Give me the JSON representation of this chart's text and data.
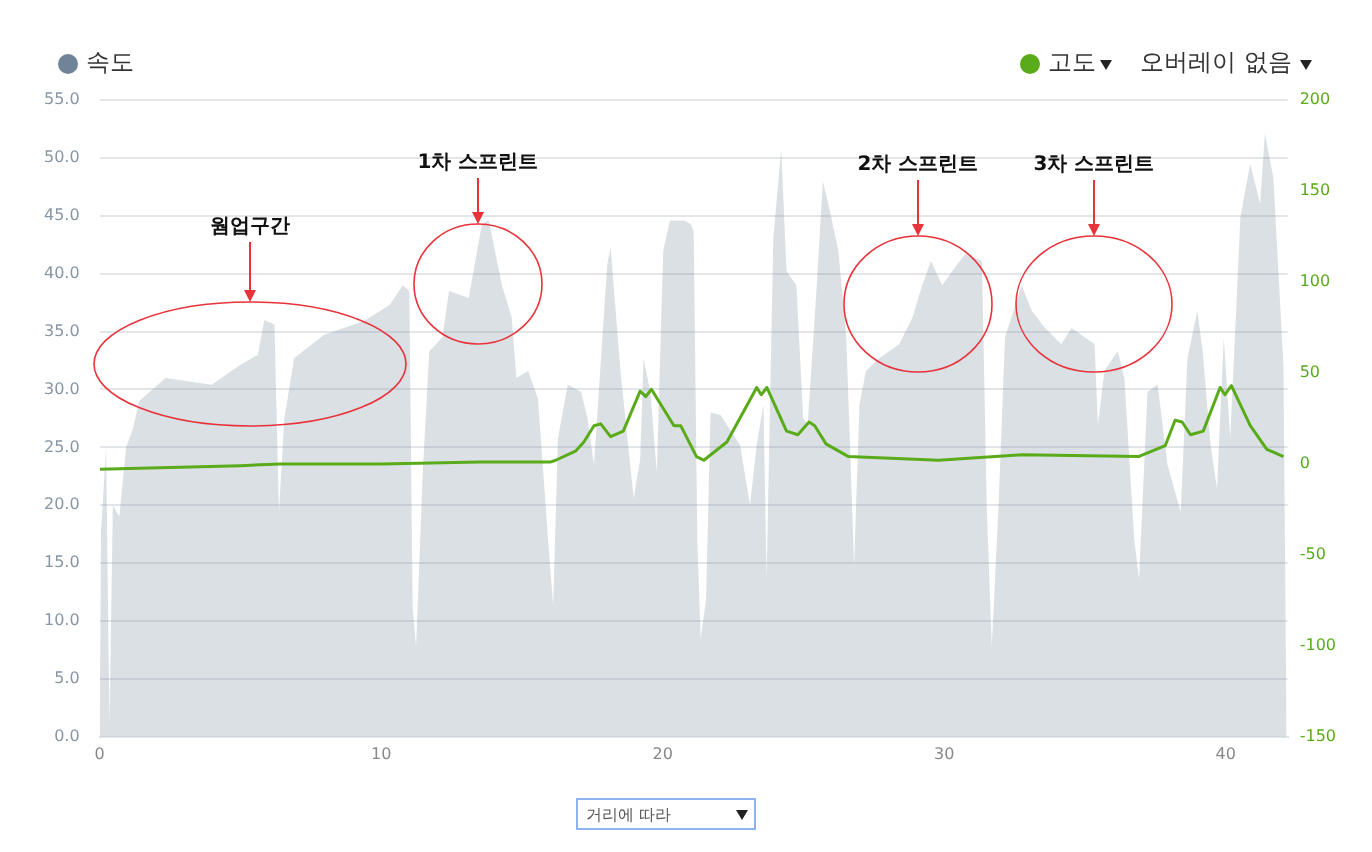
{
  "chart_data": {
    "type": "area",
    "series": [
      {
        "name": "속도",
        "color": "#718396",
        "x": [
          0,
          0.05,
          0.23,
          0.35,
          0.47,
          0.7,
          0.94,
          1.17,
          1.41,
          2.34,
          3.98,
          4.92,
          5.62,
          5.85,
          6.21,
          6.37,
          6.56,
          6.91,
          7.96,
          9.37,
          10.3,
          10.77,
          11.0,
          11.12,
          11.24,
          11.48,
          11.71,
          12.18,
          12.41,
          13.11,
          13.58,
          13.82,
          14.29,
          14.64,
          14.8,
          15.22,
          15.57,
          15.93,
          16.11,
          16.28,
          16.63,
          17.1,
          17.33,
          17.56,
          18.03,
          18.15,
          18.5,
          18.97,
          19.2,
          19.32,
          19.56,
          19.79,
          20.02,
          20.26,
          20.75,
          20.99,
          21.1,
          21.23,
          21.35,
          21.54,
          21.7,
          22.05,
          22.75,
          23.1,
          23.34,
          23.58,
          23.69,
          23.93,
          24.21,
          24.4,
          24.75,
          24.99,
          25.15,
          25.46,
          25.69,
          25.93,
          26.24,
          26.52,
          26.8,
          26.99,
          27.22,
          27.69,
          28.4,
          28.87,
          29.22,
          29.53,
          29.93,
          30.28,
          30.75,
          31.34,
          31.51,
          31.69,
          31.93,
          32.16,
          32.75,
          33.11,
          33.58,
          34.16,
          34.52,
          34.99,
          35.34,
          35.46,
          35.69,
          36.16,
          36.4,
          36.75,
          36.92,
          37.22,
          37.58,
          37.93,
          38.4,
          38.64,
          38.99,
          39.18,
          39.46,
          39.69,
          39.93,
          40.16,
          40.52,
          40.87,
          41.22,
          41.39,
          41.69,
          42.05,
          42.16
        ],
        "values": [
          0,
          17.7,
          25,
          1,
          20,
          19,
          25,
          26.5,
          29,
          31,
          30.4,
          32,
          33,
          36,
          35.6,
          19.4,
          27.5,
          32.7,
          34.7,
          35.9,
          37.3,
          39,
          38.5,
          11,
          7.8,
          22.9,
          33.3,
          34.5,
          38.5,
          37.9,
          44.3,
          44.6,
          39,
          36.2,
          31,
          31.6,
          29.2,
          17,
          11.3,
          25.8,
          30.4,
          29.8,
          27.5,
          23.5,
          40.8,
          42.3,
          31.6,
          20.6,
          24,
          32.7,
          29.8,
          22.9,
          42,
          44.6,
          44.6,
          44.3,
          43.7,
          17,
          8.4,
          11.9,
          28,
          27.8,
          25.2,
          20,
          25.2,
          28.7,
          13.6,
          43.1,
          50.7,
          40.2,
          39,
          27.5,
          27,
          38.5,
          48,
          45.5,
          42,
          34.5,
          14.8,
          28.7,
          31.6,
          32.7,
          33.9,
          36.2,
          39,
          41.1,
          39,
          40.2,
          41.7,
          41.1,
          20,
          7.8,
          20,
          34.5,
          39,
          36.8,
          35.3,
          33.9,
          35.3,
          34.5,
          33.9,
          26.9,
          31.6,
          33.3,
          31,
          17,
          13.6,
          29.8,
          30.4,
          23.5,
          19.4,
          32.7,
          36.8,
          33.3,
          25.2,
          21.4,
          34.5,
          25.8,
          44.9,
          49.5,
          46,
          52.1,
          48.3,
          32.1,
          0
        ]
      },
      {
        "name": "고도",
        "type": "line",
        "axis": "y2",
        "color": "#5aab19",
        "x": [
          0,
          5,
          6.4,
          10,
          13.5,
          16,
          16.2,
          16.9,
          17.2,
          17.56,
          17.8,
          18.15,
          18.6,
          19.2,
          19.4,
          19.6,
          20.4,
          20.64,
          21.2,
          21.46,
          22.28,
          23.34,
          23.5,
          23.7,
          24.4,
          24.8,
          25.2,
          25.4,
          25.8,
          26.6,
          29.8,
          32.75,
          36.9,
          37.85,
          38.2,
          38.45,
          38.75,
          39.2,
          39.8,
          39.97,
          40.2,
          40.87,
          41.46,
          42.05
        ],
        "values": [
          -3,
          -1,
          0,
          0,
          1,
          1,
          2,
          7,
          12,
          21,
          22,
          15,
          18,
          40,
          37,
          41,
          21,
          21,
          4,
          2,
          12,
          42,
          38,
          42,
          18,
          16,
          23,
          21,
          11,
          4,
          2,
          5,
          4,
          10,
          24,
          23,
          16,
          18,
          42,
          38,
          43,
          21,
          8,
          4
        ]
      }
    ],
    "xlim": [
      0,
      42.2
    ],
    "xticks": [
      0,
      10,
      20,
      30,
      40
    ],
    "ylim": [
      0,
      55
    ],
    "yticks": [
      {
        "value": 0,
        "label": "0.0"
      },
      {
        "value": 5,
        "label": "5.0"
      },
      {
        "value": 10,
        "label": "10.0"
      },
      {
        "value": 15,
        "label": "15.0"
      },
      {
        "value": 20,
        "label": "20.0"
      },
      {
        "value": 25,
        "label": "25.0"
      },
      {
        "value": 30,
        "label": "30.0"
      },
      {
        "value": 35,
        "label": "35.0"
      },
      {
        "value": 40,
        "label": "40.0"
      },
      {
        "value": 45,
        "label": "45.0"
      },
      {
        "value": 50,
        "label": "50.0"
      },
      {
        "value": 55,
        "label": "55.0"
      }
    ],
    "y2lim": [
      -150,
      200
    ],
    "y2ticks": [
      -150,
      -100,
      -50,
      0,
      50,
      100,
      150,
      200
    ],
    "grid": "y",
    "legend": "top",
    "marker": "none",
    "annotations": [
      "웜업구간",
      "1차 스프린트",
      "2차 스프린트",
      "3차 스프린트",
      "오버레이 없음",
      "거리에 따라"
    ]
  }
}
